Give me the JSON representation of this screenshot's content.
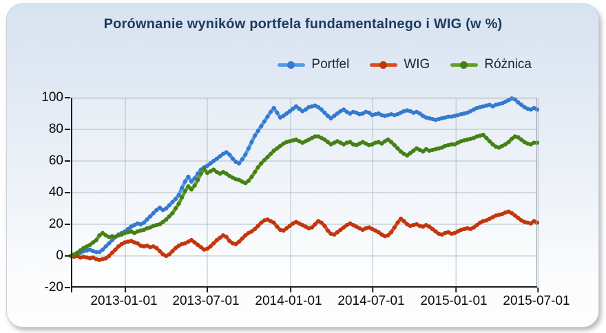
{
  "title": "Porównanie wyników portfela fundamentalnego i WIG (w %)",
  "legend": {
    "items": [
      {
        "label": "Portfel",
        "line_color": "#549ae8",
        "marker_color": "#3579cf"
      },
      {
        "label": "WIG",
        "line_color": "#e0491b",
        "marker_color": "#c2360c"
      },
      {
        "label": "Różnica",
        "line_color": "#63a028",
        "marker_color": "#467f16"
      }
    ]
  },
  "y_axis": {
    "ticks": [
      "100",
      "80",
      "60",
      "40",
      "20",
      "0",
      "-20"
    ]
  },
  "x_axis": {
    "ticks": [
      "2013-01-01",
      "2013-07-01",
      "2014-01-01",
      "2014-07-01",
      "2015-01-01",
      "2015-07-01"
    ]
  },
  "colors": {
    "title": "#1d3b5e",
    "grid": "#b4bcc6",
    "frame_light": "#99a1ab",
    "axis": "#1a1a1a",
    "panel_top": "#d8e3f1",
    "panel_bottom": "#fdfdfe"
  },
  "chart_data": {
    "type": "line",
    "title": "Porównanie wyników portfela fundamentalnego i WIG (w %)",
    "xlabel": "",
    "ylabel": "",
    "ylim": [
      -20,
      100
    ],
    "grid": true,
    "legend_position": "top-right",
    "x_start_date": "2012-09-03",
    "x_step_days": 7,
    "x_axis_tick_dates": [
      "2013-01-01",
      "2013-07-01",
      "2014-01-01",
      "2014-07-01",
      "2015-01-01",
      "2015-07-01"
    ],
    "series": [
      {
        "name": "Portfel",
        "color": "#549ae8",
        "marker_color": "#3579cf",
        "values": [
          0,
          0.5,
          1,
          2,
          3,
          3.5,
          4,
          3,
          2.5,
          2.5,
          4,
          6,
          8,
          10,
          12,
          13.5,
          14.5,
          15.5,
          17,
          18.5,
          19.5,
          20.5,
          20,
          21,
          23,
          25,
          27,
          29,
          30.5,
          29,
          30,
          32,
          34,
          36,
          38.5,
          43,
          47,
          50,
          47,
          49,
          52,
          54.5,
          56,
          57,
          58.5,
          60,
          61.5,
          63,
          64.5,
          65.5,
          64,
          61.5,
          59.5,
          58.5,
          61,
          64,
          68,
          72,
          76,
          79,
          82,
          85,
          88,
          91,
          93.5,
          90.5,
          87.5,
          88.5,
          90,
          91.5,
          93,
          94.5,
          93,
          91.5,
          92.5,
          94,
          94.5,
          95,
          94,
          92.5,
          90.5,
          88.5,
          87,
          88.5,
          90,
          91.5,
          92.5,
          91,
          90,
          91,
          90.5,
          89.5,
          90,
          91,
          90.5,
          89,
          89.5,
          90,
          89,
          88.5,
          89,
          89.5,
          89,
          89.5,
          90.5,
          91.5,
          92,
          91.5,
          90.5,
          91,
          90,
          88.5,
          87.5,
          87,
          86.5,
          86,
          86.5,
          87,
          87.5,
          88,
          88,
          88.5,
          89,
          89.5,
          90,
          90.5,
          91.5,
          92.5,
          93.5,
          94,
          94.5,
          95,
          95.5,
          94.5,
          95.5,
          96,
          96.5,
          97.5,
          98.5,
          99.5,
          99,
          97,
          95.5,
          94,
          93,
          92.5,
          93.5,
          92.5
        ]
      },
      {
        "name": "WIG",
        "color": "#e0491b",
        "marker_color": "#c2360c",
        "values": [
          0,
          -0.5,
          0,
          -1,
          -0.5,
          -1,
          -1.5,
          -1,
          -2,
          -2.5,
          -2,
          -1.5,
          0,
          2,
          4,
          6,
          7.5,
          8.5,
          9,
          9.5,
          8.5,
          8,
          6.5,
          6,
          6.5,
          5.5,
          6,
          5,
          3,
          1,
          0,
          1,
          3,
          5,
          6.5,
          7.5,
          8,
          9,
          10,
          8.5,
          7,
          5.5,
          4,
          4.5,
          6,
          8,
          10,
          11.5,
          13,
          12,
          9.5,
          8,
          7.5,
          9,
          11,
          13,
          14.5,
          15.5,
          17,
          19,
          21,
          22.5,
          23,
          22,
          21,
          18.5,
          16.5,
          16,
          17.5,
          19,
          20.5,
          21.5,
          20.5,
          19.5,
          18.5,
          17.5,
          18,
          20,
          22,
          21,
          19,
          16,
          14,
          13.5,
          15,
          16.5,
          18,
          19.5,
          20.5,
          19.5,
          18.5,
          17.5,
          16.5,
          17.5,
          18,
          17,
          16,
          15,
          13.5,
          12.5,
          13,
          15,
          18,
          21,
          23.5,
          22,
          20,
          19,
          19.5,
          20,
          19,
          18.5,
          19.5,
          18.5,
          17,
          15.5,
          14,
          13.5,
          14.5,
          15,
          14,
          14.5,
          15.5,
          16.5,
          17,
          17.5,
          17,
          18,
          19.5,
          21,
          22,
          22.5,
          23.5,
          24.5,
          25.5,
          26,
          26.5,
          27.5,
          28,
          27,
          25.5,
          24,
          22.5,
          21.5,
          21,
          20.5,
          22,
          21
        ]
      },
      {
        "name": "Różnica",
        "color": "#63a028",
        "marker_color": "#467f16",
        "values": [
          0,
          1,
          2,
          3.5,
          5,
          6,
          7,
          8.5,
          10,
          13,
          14.5,
          13,
          12,
          12.5,
          12,
          13,
          13.5,
          14.5,
          15,
          15.5,
          14.5,
          15.5,
          16,
          16.5,
          17.5,
          18,
          19,
          19.5,
          20,
          21.5,
          23,
          25,
          27,
          30,
          33,
          37,
          41,
          44,
          42,
          44.5,
          48,
          52,
          55,
          52.5,
          53.5,
          54.5,
          53,
          52,
          53,
          52,
          50.5,
          49.5,
          48.5,
          48,
          47,
          46,
          47.5,
          50,
          53,
          56,
          58.5,
          60.5,
          62.5,
          64.5,
          66.5,
          68,
          69.5,
          71,
          72,
          72.5,
          73,
          73.5,
          72.5,
          71.5,
          72.5,
          73.5,
          74.5,
          75.5,
          75.5,
          74.5,
          73.5,
          72,
          70.5,
          71.5,
          72.5,
          71.5,
          70.5,
          71.5,
          72,
          70.5,
          70,
          71,
          72,
          71,
          70,
          70.5,
          71.5,
          72,
          71,
          72.5,
          73.5,
          72,
          70,
          68,
          66,
          64.5,
          63.5,
          65,
          66.5,
          68,
          67,
          66,
          67.5,
          66.5,
          67,
          67.5,
          68,
          68.5,
          69.5,
          70,
          70.5,
          70.5,
          71.5,
          72.5,
          73,
          73.5,
          74,
          74.5,
          75.5,
          76,
          76.5,
          74.5,
          72.5,
          70.5,
          69,
          68.5,
          69.5,
          70.5,
          72,
          74,
          75.5,
          75,
          73.5,
          72,
          71,
          70.5,
          71.5,
          71.5
        ]
      }
    ]
  }
}
